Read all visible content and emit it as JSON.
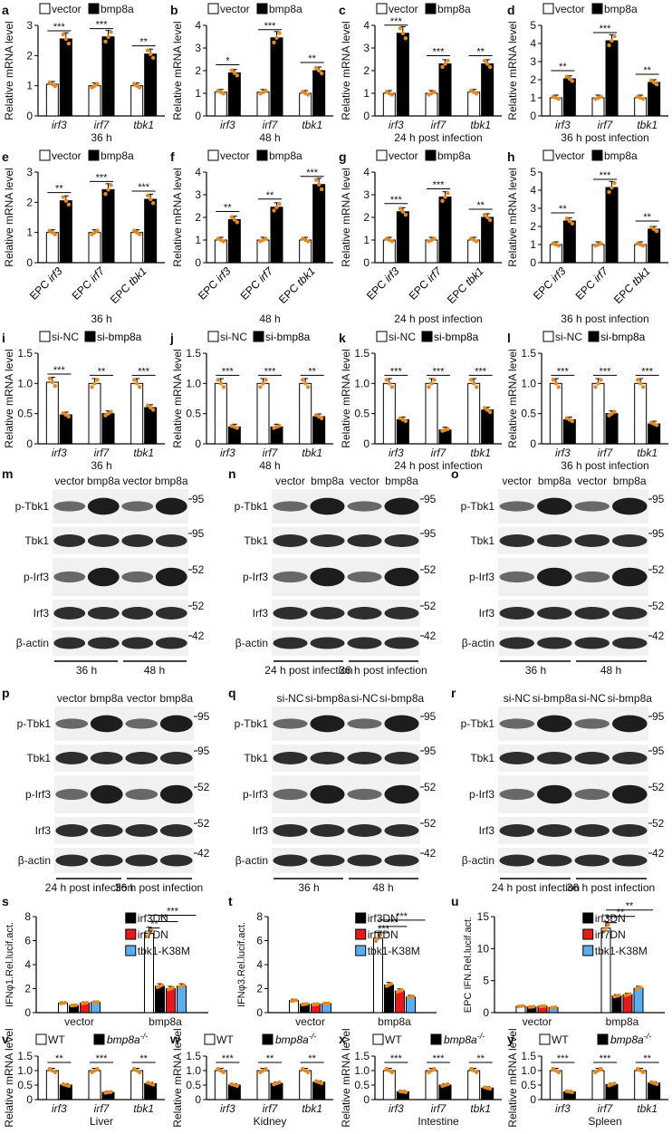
{
  "colors": {
    "bar_fill_dark": "#000000",
    "bar_fill_light": "#ffffff",
    "dot": "#e58a1f",
    "red": "#e8191b",
    "blue": "#59aef3"
  },
  "chart_data": [
    {
      "panel": "a",
      "type": "bar",
      "legend": [
        "vector",
        "bmp8a"
      ],
      "ylabel": "Relative mRNA level",
      "ylim": [
        0,
        3
      ],
      "yticks": [
        "0",
        "1",
        "2",
        "3"
      ],
      "categories": [
        "irf3",
        "irf7",
        "tbk1"
      ],
      "cat_style": "italic",
      "series": [
        {
          "name": "vector",
          "values": [
            1.05,
            1.0,
            1.0
          ]
        },
        {
          "name": "bmp8a",
          "values": [
            2.55,
            2.62,
            2.05
          ]
        }
      ],
      "sig": [
        "***",
        "***",
        "**"
      ],
      "caption": "36 h"
    },
    {
      "panel": "b",
      "type": "bar",
      "legend": [
        "vector",
        "bmp8a"
      ],
      "ylabel": "Relative mRNA level",
      "ylim": [
        0,
        4
      ],
      "yticks": [
        "0",
        "1",
        "2",
        "3",
        "4"
      ],
      "categories": [
        "irf3",
        "irf7",
        "tbk1"
      ],
      "cat_style": "italic",
      "series": [
        {
          "name": "vector",
          "values": [
            1.05,
            1.05,
            1.0
          ]
        },
        {
          "name": "bmp8a",
          "values": [
            1.9,
            3.45,
            2.0
          ]
        }
      ],
      "sig": [
        "*",
        "***",
        "**"
      ],
      "caption": "48 h"
    },
    {
      "panel": "c",
      "type": "bar",
      "legend": [
        "vector",
        "bmp8a"
      ],
      "ylabel": "Relative mRNA level",
      "ylim": [
        0,
        4
      ],
      "yticks": [
        "0",
        "1",
        "2",
        "3",
        "4"
      ],
      "categories": [
        "irf3",
        "irf7",
        "tbk1"
      ],
      "cat_style": "italic",
      "series": [
        {
          "name": "vector",
          "values": [
            1.0,
            1.0,
            1.05
          ]
        },
        {
          "name": "bmp8a",
          "values": [
            3.65,
            2.3,
            2.3
          ]
        }
      ],
      "sig": [
        "***",
        "***",
        "**"
      ],
      "caption": "24 h post infection"
    },
    {
      "panel": "d",
      "type": "bar",
      "legend": [
        "vector",
        "bmp8a"
      ],
      "ylabel": "Relative mRNA level",
      "ylim": [
        0,
        5
      ],
      "yticks": [
        "0",
        "1",
        "2",
        "3",
        "4",
        "5"
      ],
      "categories": [
        "irf3",
        "irf7",
        "tbk1"
      ],
      "cat_style": "italic",
      "series": [
        {
          "name": "vector",
          "values": [
            1.0,
            1.0,
            1.0
          ]
        },
        {
          "name": "bmp8a",
          "values": [
            2.05,
            4.15,
            1.85
          ]
        }
      ],
      "sig": [
        "**",
        "***",
        "**"
      ],
      "caption": "36 h post infection"
    },
    {
      "panel": "e",
      "type": "bar",
      "legend": [
        "vector",
        "bmp8a"
      ],
      "ylabel": "Relative mRNA level",
      "ylim": [
        0,
        3
      ],
      "yticks": [
        "0",
        "1",
        "2",
        "3"
      ],
      "categories": [
        "EPC irf3",
        "EPC irf7",
        "EPC tbk1"
      ],
      "cat_style": "epc",
      "series": [
        {
          "name": "vector",
          "values": [
            1.0,
            1.0,
            1.0
          ]
        },
        {
          "name": "bmp8a",
          "values": [
            2.05,
            2.42,
            2.1
          ]
        }
      ],
      "sig": [
        "**",
        "***",
        "***"
      ],
      "caption": "36 h"
    },
    {
      "panel": "f",
      "type": "bar",
      "legend": [
        "vector",
        "bmp8a"
      ],
      "ylabel": "Relative mRNA level",
      "ylim": [
        0,
        4
      ],
      "yticks": [
        "0",
        "1",
        "2",
        "3",
        "4"
      ],
      "categories": [
        "EPC irf3",
        "EPC irf7",
        "EPC tbk1"
      ],
      "cat_style": "epc",
      "series": [
        {
          "name": "vector",
          "values": [
            1.0,
            1.0,
            1.0
          ]
        },
        {
          "name": "bmp8a",
          "values": [
            1.9,
            2.45,
            3.45
          ]
        }
      ],
      "sig": [
        "**",
        "**",
        "***"
      ],
      "caption": "48 h"
    },
    {
      "panel": "g",
      "type": "bar",
      "legend": [
        "vector",
        "bmp8a"
      ],
      "ylabel": "Relative mRNA level",
      "ylim": [
        0,
        4
      ],
      "yticks": [
        "0",
        "1",
        "2",
        "3",
        "4"
      ],
      "categories": [
        "EPC irf3",
        "EPC irf7",
        "EPC tbk1"
      ],
      "cat_style": "epc",
      "series": [
        {
          "name": "vector",
          "values": [
            1.0,
            1.0,
            1.0
          ]
        },
        {
          "name": "bmp8a",
          "values": [
            2.25,
            2.9,
            2.0
          ]
        }
      ],
      "sig": [
        "***",
        "***",
        "**"
      ],
      "caption": "24 h post infection"
    },
    {
      "panel": "h",
      "type": "bar",
      "legend": [
        "vector",
        "bmp8a"
      ],
      "ylabel": "Relative mRNA level",
      "ylim": [
        0,
        5
      ],
      "yticks": [
        "0",
        "1",
        "2",
        "3",
        "4",
        "5"
      ],
      "categories": [
        "EPC irf3",
        "EPC irf7",
        "EPC tbk1"
      ],
      "cat_style": "epc",
      "series": [
        {
          "name": "vector",
          "values": [
            1.0,
            1.0,
            1.0
          ]
        },
        {
          "name": "bmp8a",
          "values": [
            2.3,
            4.15,
            1.85
          ]
        }
      ],
      "sig": [
        "**",
        "***",
        "**"
      ],
      "caption": "36 h post infection"
    },
    {
      "panel": "i",
      "type": "bar",
      "legend": [
        "si-NC",
        "si-bmp8a"
      ],
      "ylabel": "Relative mRNA level",
      "ylim": [
        0,
        1.5
      ],
      "yticks": [
        "0",
        "0.5",
        "1.0",
        "1.5"
      ],
      "categories": [
        "irf3",
        "irf7",
        "tbk1"
      ],
      "cat_style": "italic",
      "series": [
        {
          "name": "si-NC",
          "values": [
            1.02,
            1.0,
            1.0
          ]
        },
        {
          "name": "si-bmp8a",
          "values": [
            0.48,
            0.5,
            0.6
          ]
        }
      ],
      "sig": [
        "***",
        "**",
        "***"
      ],
      "caption": "36 h"
    },
    {
      "panel": "j",
      "type": "bar",
      "legend": [
        "si-NC",
        "si-bmp8a"
      ],
      "ylabel": "Relative mRNA level",
      "ylim": [
        0,
        1.5
      ],
      "yticks": [
        "0",
        "0.5",
        "1.0",
        "1.5"
      ],
      "categories": [
        "irf3",
        "irf7",
        "tbk1"
      ],
      "cat_style": "italic",
      "series": [
        {
          "name": "si-NC",
          "values": [
            1.0,
            1.0,
            1.0
          ]
        },
        {
          "name": "si-bmp8a",
          "values": [
            0.28,
            0.28,
            0.45
          ]
        }
      ],
      "sig": [
        "***",
        "***",
        "**"
      ],
      "caption": "48 h"
    },
    {
      "panel": "k",
      "type": "bar",
      "legend": [
        "si-NC",
        "si-bmp8a"
      ],
      "ylabel": "Relative mRNA level",
      "ylim": [
        0,
        1.5
      ],
      "yticks": [
        "0",
        "0.5",
        "1.0",
        "1.5"
      ],
      "categories": [
        "irf3",
        "irf7",
        "tbk1"
      ],
      "cat_style": "italic",
      "series": [
        {
          "name": "si-NC",
          "values": [
            1.0,
            1.0,
            1.0
          ]
        },
        {
          "name": "si-bmp8a",
          "values": [
            0.4,
            0.23,
            0.56
          ]
        }
      ],
      "sig": [
        "***",
        "***",
        "***"
      ],
      "caption": "24 h post infection"
    },
    {
      "panel": "l",
      "type": "bar",
      "legend": [
        "si-NC",
        "si-bmp8a"
      ],
      "ylabel": "Relative mRNA level",
      "ylim": [
        0,
        1.5
      ],
      "yticks": [
        "0",
        "0.5",
        "1.0",
        "1.5"
      ],
      "categories": [
        "irf3",
        "irf7",
        "tbk1"
      ],
      "cat_style": "italic",
      "series": [
        {
          "name": "si-NC",
          "values": [
            1.0,
            1.0,
            1.0
          ]
        },
        {
          "name": "si-bmp8a",
          "values": [
            0.4,
            0.5,
            0.33
          ]
        }
      ],
      "sig": [
        "***",
        "***",
        "***"
      ],
      "caption": "36 h post infection"
    },
    {
      "panel": "s",
      "type": "bar",
      "ylabel": "IFNφ1.Rel.lucif.act.",
      "ylim": [
        0,
        8
      ],
      "yticks": [
        "0",
        "2",
        "4",
        "6",
        "8"
      ],
      "categories": [
        "vector",
        "bmp8a"
      ],
      "legend": [
        "irf3DN",
        "irf7DN",
        "tbk1-K38M"
      ],
      "series": [
        {
          "name": "",
          "values": [
            0.8,
            6.6
          ]
        },
        {
          "name": "irf3DN",
          "values": [
            0.6,
            2.2
          ]
        },
        {
          "name": "irf7DN",
          "values": [
            0.8,
            2.0
          ]
        },
        {
          "name": "tbk1-K38M",
          "values": [
            0.85,
            2.2
          ]
        }
      ],
      "sig": [
        "**",
        "**",
        "***"
      ]
    },
    {
      "panel": "t",
      "type": "bar",
      "ylabel": "IFNφ3.Rel.lucif.act.",
      "ylim": [
        0,
        8
      ],
      "yticks": [
        "0",
        "2",
        "4",
        "6",
        "8"
      ],
      "categories": [
        "vector",
        "bmp8a"
      ],
      "legend": [
        "irf3DN",
        "irf7DN",
        "tbk1-K38M"
      ],
      "series": [
        {
          "name": "",
          "values": [
            1.0,
            6.2
          ]
        },
        {
          "name": "irf3DN",
          "values": [
            0.7,
            2.3
          ]
        },
        {
          "name": "irf7DN",
          "values": [
            0.7,
            1.8
          ]
        },
        {
          "name": "tbk1-K38M",
          "values": [
            0.75,
            1.3
          ]
        }
      ],
      "sig": [
        "***",
        "***",
        "***"
      ]
    },
    {
      "panel": "u",
      "type": "bar",
      "ylabel": "EPC IFN.Rel.lucif.act.",
      "ylim": [
        0,
        15
      ],
      "yticks": [
        "0",
        "5",
        "10",
        "15"
      ],
      "categories": [
        "vector",
        "bmp8a"
      ],
      "legend": [
        "irf3DN",
        "irf7DN",
        "tbk1-K38M"
      ],
      "series": [
        {
          "name": "",
          "values": [
            1.0,
            13.2
          ]
        },
        {
          "name": "irf3DN",
          "values": [
            0.9,
            2.6
          ]
        },
        {
          "name": "irf7DN",
          "values": [
            1.0,
            2.8
          ]
        },
        {
          "name": "tbk1-K38M",
          "values": [
            0.8,
            3.8
          ]
        }
      ],
      "sig": [
        "***",
        "**",
        "**"
      ]
    },
    {
      "panel": "v",
      "type": "bar",
      "legend": [
        "WT",
        "bmp8a"
      ],
      "ylabel": "Relative mRNA level",
      "ylim": [
        0,
        1.5
      ],
      "yticks": [
        "0",
        "0.5",
        "1.0",
        "1.5"
      ],
      "categories": [
        "irf3",
        "irf7",
        "tbk1"
      ],
      "cat_style": "italic",
      "series": [
        {
          "name": "WT",
          "values": [
            1.0,
            1.0,
            1.0
          ]
        },
        {
          "name": "bmp8a",
          "values": [
            0.5,
            0.25,
            0.55
          ]
        }
      ],
      "sig": [
        "**",
        "***",
        "**"
      ],
      "caption": "Liver"
    },
    {
      "panel": "w",
      "type": "bar",
      "legend": [
        "WT",
        "bmp8a"
      ],
      "ylabel": "Relative mRNA level",
      "ylim": [
        0,
        1.5
      ],
      "yticks": [
        "0",
        "0.5",
        "1.0",
        "1.5"
      ],
      "categories": [
        "irf3",
        "irf7",
        "tbk1"
      ],
      "cat_style": "italic",
      "series": [
        {
          "name": "WT",
          "values": [
            1.0,
            1.0,
            1.0
          ]
        },
        {
          "name": "bmp8a",
          "values": [
            0.5,
            0.56,
            0.6
          ]
        }
      ],
      "sig": [
        "***",
        "**",
        "**"
      ],
      "caption": "Kidney"
    },
    {
      "panel": "x",
      "type": "bar",
      "legend": [
        "WT",
        "bmp8a"
      ],
      "ylabel": "Relative mRNA level",
      "ylim": [
        0,
        1.5
      ],
      "yticks": [
        "0",
        "0.5",
        "1.0",
        "1.5"
      ],
      "categories": [
        "irf3",
        "irf7",
        "tbk1"
      ],
      "cat_style": "italic",
      "series": [
        {
          "name": "WT",
          "values": [
            1.0,
            1.0,
            1.0
          ]
        },
        {
          "name": "bmp8a",
          "values": [
            0.27,
            0.5,
            0.4
          ]
        }
      ],
      "sig": [
        "***",
        "***",
        "**"
      ],
      "caption": "Intestine"
    },
    {
      "panel": "y",
      "type": "bar",
      "legend": [
        "WT",
        "bmp8a"
      ],
      "ylabel": "Relative mRNA level",
      "ylim": [
        0,
        1.5
      ],
      "yticks": [
        "0",
        "0.5",
        "1.0",
        "1.5"
      ],
      "categories": [
        "irf3",
        "irf7",
        "tbk1"
      ],
      "cat_style": "italic",
      "series": [
        {
          "name": "WT",
          "values": [
            1.0,
            1.0,
            1.0
          ]
        },
        {
          "name": "bmp8a",
          "values": [
            0.27,
            0.52,
            0.57
          ]
        }
      ],
      "sig": [
        "***",
        "***",
        "**"
      ],
      "caption": "Spleen"
    }
  ],
  "blots": [
    {
      "panel": "m",
      "top": [
        "vector",
        "bmp8a",
        "vector",
        "bmp8a"
      ],
      "rows": [
        "p-Tbk1",
        "Tbk1",
        "p-Irf3",
        "Irf3",
        "β-actin"
      ],
      "mw": [
        "95",
        "95",
        "52",
        "52",
        "42"
      ],
      "groups": [
        "36 h",
        "48 h"
      ]
    },
    {
      "panel": "n",
      "top": [
        "vector",
        "bmp8a",
        "vector",
        "bmp8a"
      ],
      "rows": [
        "p-Tbk1",
        "Tbk1",
        "p-Irf3",
        "Irf3",
        "β-actin"
      ],
      "mw": [
        "95",
        "95",
        "52",
        "52",
        "42"
      ],
      "groups": [
        "24 h post infection",
        "36 h post infection"
      ]
    },
    {
      "panel": "o",
      "top": [
        "vector",
        "bmp8a",
        "vector",
        "bmp8a"
      ],
      "rows": [
        "p-Tbk1",
        "Tbk1",
        "p-Irf3",
        "Irf3",
        "β-actin"
      ],
      "mw": [
        "95",
        "95",
        "52",
        "52",
        "42"
      ],
      "groups": [
        "36 h",
        "48 h"
      ]
    },
    {
      "panel": "p",
      "top": [
        "vector",
        "bmp8a",
        "vector",
        "bmp8a"
      ],
      "rows": [
        "p-Tbk1",
        "Tbk1",
        "p-Irf3",
        "Irf3",
        "β-actin"
      ],
      "mw": [
        "95",
        "95",
        "52",
        "52",
        "42"
      ],
      "groups": [
        "24 h post infection",
        "36 h post infection"
      ]
    },
    {
      "panel": "q",
      "top": [
        "si-NC",
        "si-bmp8a",
        "si-NC",
        "si-bmp8a"
      ],
      "rows": [
        "p-Tbk1",
        "Tbk1",
        "p-Irf3",
        "Irf3",
        "β-actin"
      ],
      "mw": [
        "95",
        "95",
        "52",
        "52",
        "42"
      ],
      "groups": [
        "36 h",
        "48 h"
      ]
    },
    {
      "panel": "r",
      "top": [
        "si-NC",
        "si-bmp8a",
        "si-NC",
        "si-bmp8a"
      ],
      "rows": [
        "p-Tbk1",
        "Tbk1",
        "p-Irf3",
        "Irf3",
        "β-actin"
      ],
      "mw": [
        "95",
        "95",
        "52",
        "52",
        "42"
      ],
      "groups": [
        "24 h post infection",
        "36 h post infection"
      ]
    }
  ]
}
